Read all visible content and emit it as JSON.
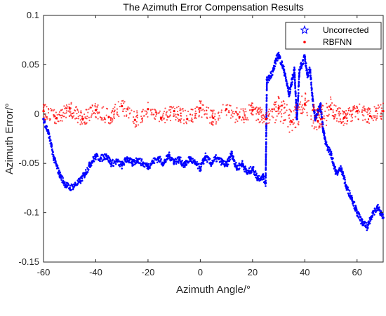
{
  "chart_data": {
    "type": "scatter",
    "title": "The Azimuth Error Compensation Results",
    "xlabel": "Azimuth Angle/°",
    "ylabel": "Azimuth Error/°",
    "xlim": [
      -60,
      70
    ],
    "ylim": [
      -0.15,
      0.1
    ],
    "xticks": [
      "-60",
      "-40",
      "-20",
      "0",
      "20",
      "40",
      "60"
    ],
    "xtick_values": [
      -60,
      -40,
      -20,
      0,
      20,
      40,
      60
    ],
    "yticks": [
      "0.1",
      "0.05",
      "0",
      "-0.05",
      "-0.1",
      "-0.15"
    ],
    "ytick_values": [
      0.1,
      0.05,
      0,
      -0.05,
      -0.1,
      -0.15
    ],
    "grid": false,
    "legend_position": "top-right",
    "series": [
      {
        "name": "Uncorrected",
        "color": "#0000ff",
        "marker": "star",
        "x": [
          -60,
          -58,
          -56,
          -54,
          -52,
          -50,
          -48,
          -46,
          -44,
          -42,
          -40,
          -38,
          -36,
          -34,
          -32,
          -30,
          -28,
          -26,
          -24,
          -22,
          -20,
          -18,
          -16,
          -14,
          -12,
          -10,
          -8,
          -6,
          -4,
          -2,
          0,
          2,
          4,
          6,
          8,
          10,
          12,
          14,
          16,
          18,
          20,
          22,
          24,
          25,
          25.5,
          26,
          28,
          29,
          30,
          32,
          34,
          36,
          37,
          38,
          40,
          41,
          42,
          43,
          44,
          46,
          47,
          48,
          50,
          52,
          54,
          56,
          58,
          60,
          62,
          64,
          66,
          68,
          70
        ],
        "y": [
          -0.005,
          -0.02,
          -0.045,
          -0.06,
          -0.07,
          -0.075,
          -0.072,
          -0.068,
          -0.06,
          -0.05,
          -0.043,
          -0.045,
          -0.042,
          -0.05,
          -0.048,
          -0.052,
          -0.045,
          -0.05,
          -0.046,
          -0.05,
          -0.053,
          -0.048,
          -0.045,
          -0.05,
          -0.042,
          -0.048,
          -0.046,
          -0.052,
          -0.045,
          -0.05,
          -0.055,
          -0.043,
          -0.05,
          -0.045,
          -0.048,
          -0.052,
          -0.04,
          -0.055,
          -0.05,
          -0.06,
          -0.055,
          -0.065,
          -0.063,
          -0.07,
          0.035,
          0.035,
          0.045,
          0.055,
          0.06,
          0.045,
          0.02,
          0.045,
          -0.005,
          0.045,
          0.058,
          0.04,
          0.045,
          0.015,
          -0.005,
          0.01,
          -0.015,
          -0.03,
          -0.04,
          -0.06,
          -0.055,
          -0.075,
          -0.085,
          -0.1,
          -0.11,
          -0.115,
          -0.1,
          -0.095,
          -0.105
        ]
      },
      {
        "name": "RBFNN",
        "color": "#ff0000",
        "marker": "dot",
        "x": [
          -60,
          -55,
          -50,
          -45,
          -40,
          -35,
          -30,
          -25,
          -20,
          -15,
          -10,
          -5,
          0,
          5,
          10,
          15,
          20,
          25,
          30,
          35,
          40,
          45,
          50,
          55,
          60,
          65,
          70
        ],
        "y": [
          0.003,
          -0.004,
          0.006,
          -0.005,
          0.004,
          -0.003,
          0.008,
          -0.006,
          0.005,
          -0.004,
          0.003,
          -0.005,
          0.006,
          -0.004,
          0.005,
          -0.003,
          0.004,
          -0.005,
          0.006,
          -0.008,
          0.01,
          -0.007,
          0.005,
          -0.004,
          0.003,
          -0.002,
          0.003
        ],
        "spread": 0.008
      }
    ]
  }
}
